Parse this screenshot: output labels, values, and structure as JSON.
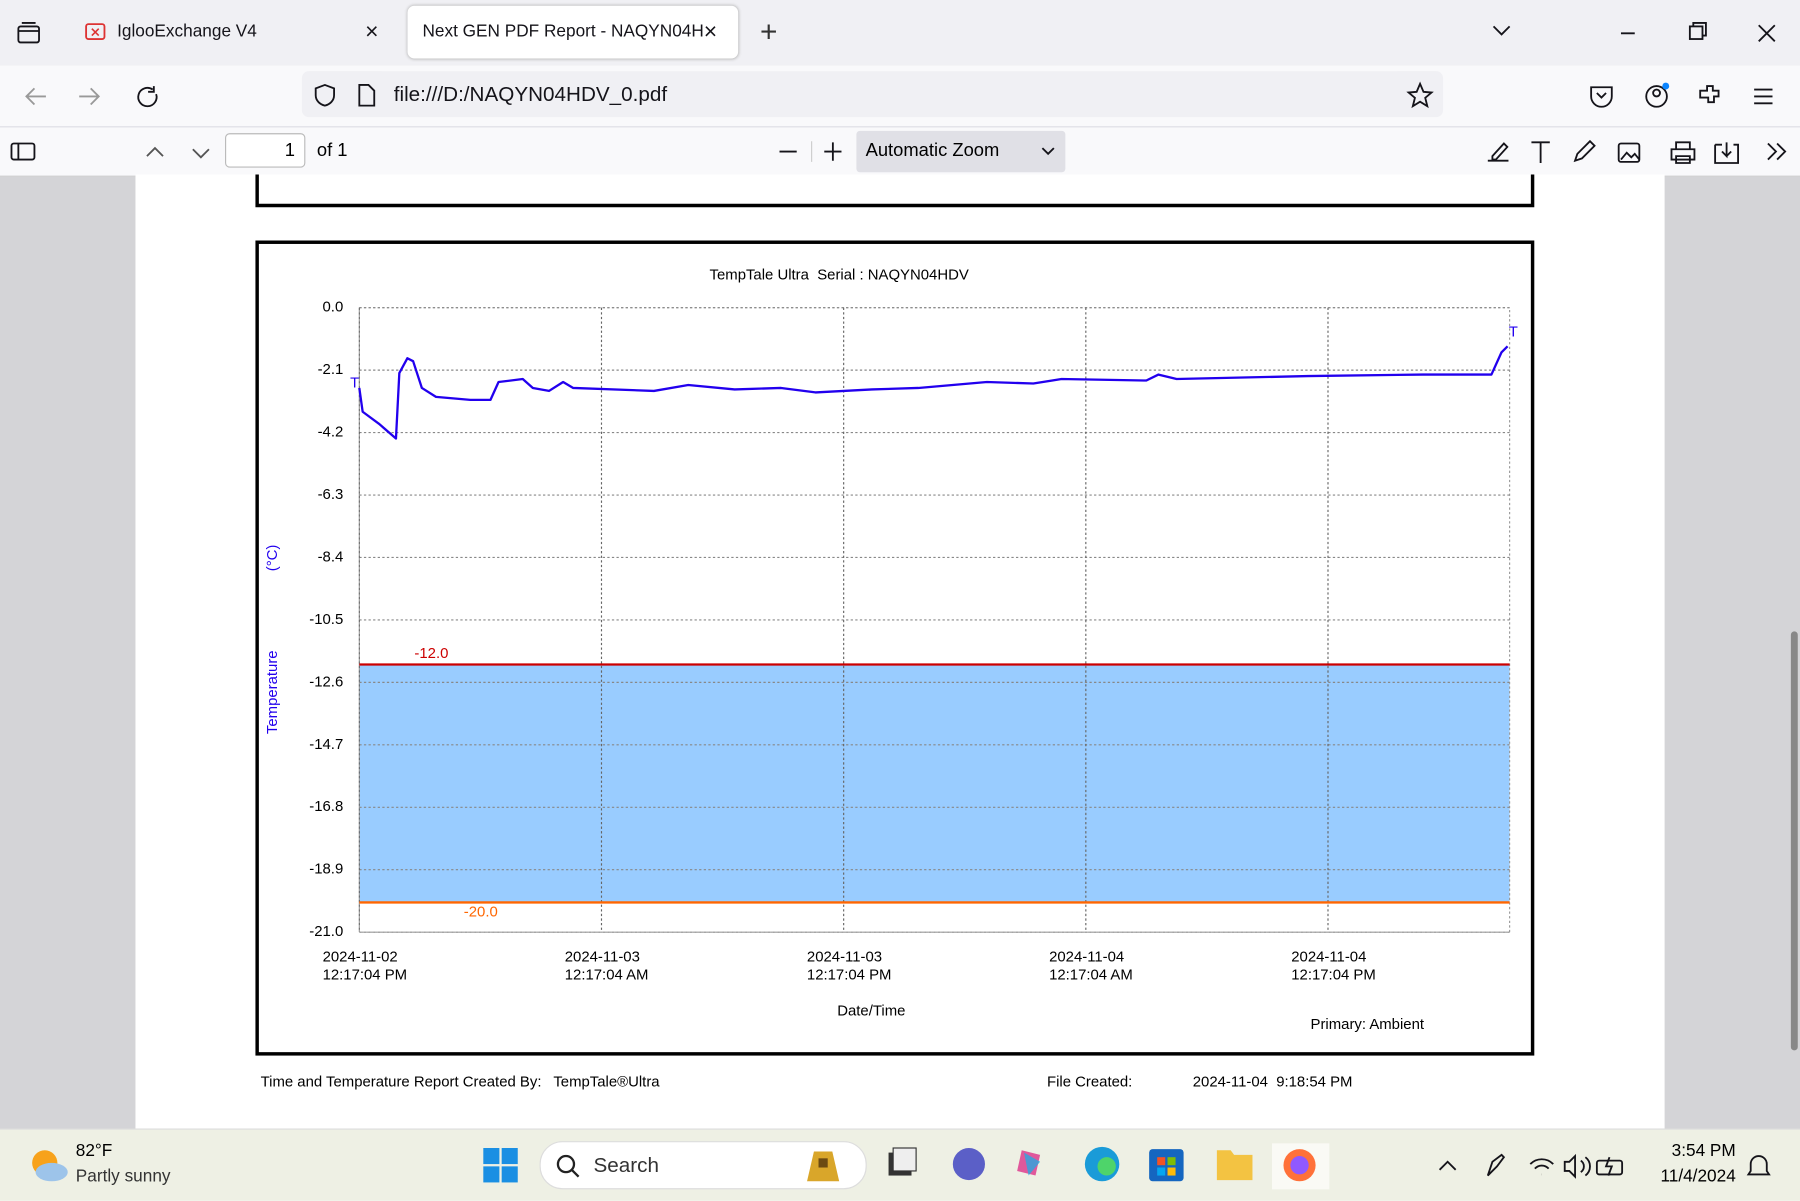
{
  "browser": {
    "tabs": [
      "IglooExchange V4",
      "Next GEN PDF Report - NAQYN04H"
    ],
    "url": "file:///D:/NAQYN04HDV_0.pdf"
  },
  "pdf_toolbar": {
    "page": "1",
    "page_count": "of 1",
    "zoom": "Automatic Zoom"
  },
  "chart_data": {
    "type": "line",
    "title": "TempTale Ultra  Serial : NAQYN04HDV",
    "x_label": "Date/Time",
    "y_label": "Temperature",
    "y_unit": "(°C)",
    "xlim": [
      "2024-11-02T12:17:04",
      "2024-11-04T21:17:04"
    ],
    "xticks": [
      {
        "value": "2024-11-02T12:17:04",
        "label": [
          "2024-11-02",
          "12:17:04 PM"
        ]
      },
      {
        "value": "2024-11-03T00:17:04",
        "label": [
          "2024-11-03",
          "12:17:04 AM"
        ]
      },
      {
        "value": "2024-11-03T12:17:04",
        "label": [
          "2024-11-03",
          "12:17:04 PM"
        ]
      },
      {
        "value": "2024-11-04T00:17:04",
        "label": [
          "2024-11-04",
          "12:17:04 AM"
        ]
      },
      {
        "value": "2024-11-04T12:17:04",
        "label": [
          "2024-11-04",
          "12:17:04 PM"
        ]
      }
    ],
    "ylim": [
      -21,
      0
    ],
    "yticks": [
      {
        "value": 0,
        "label": "0.0"
      },
      -2.1,
      -4.2,
      -6.3,
      -8.4,
      -10.5,
      -12.6,
      -14.7,
      -16.8,
      -18.9,
      {
        "value": -21,
        "label": "-21.0"
      }
    ],
    "grid": true,
    "thresholds": [
      {
        "value": -12,
        "label": "-12.0",
        "color": "#cc0000"
      },
      {
        "value": -20,
        "label": "-20.0",
        "color": "#ff6600"
      }
    ],
    "band_color": "#99ccff",
    "markers": {
      "start": "T",
      "end": "T"
    },
    "series": [
      {
        "name": "Primary: Ambient",
        "color": "#2200ee",
        "x": [
          "2024-11-02T12:17",
          "2024-11-02T12:27",
          "2024-11-02T13:15",
          "2024-11-02T14:06",
          "2024-11-02T14:16",
          "2024-11-02T14:40",
          "2024-11-02T14:57",
          "2024-11-02T15:23",
          "2024-11-02T16:05",
          "2024-11-02T17:47",
          "2024-11-02T18:47",
          "2024-11-02T19:11",
          "2024-11-02T20:23",
          "2024-11-02T20:53",
          "2024-11-02T21:41",
          "2024-11-02T22:23",
          "2024-11-02T22:53",
          "2024-11-03T02:53",
          "2024-11-03T04:35",
          "2024-11-03T06:53",
          "2024-11-03T09:11",
          "2024-11-03T10:53",
          "2024-11-03T13:41",
          "2024-11-03T15:59",
          "2024-11-03T17:41",
          "2024-11-03T19:23",
          "2024-11-03T21:41",
          "2024-11-03T23:05",
          "2024-11-04T03:17",
          "2024-11-04T03:53",
          "2024-11-04T04:47",
          "2024-11-04T11:17",
          "2024-11-04T16:59",
          "2024-11-04T20:23",
          "2024-11-04T20:53",
          "2024-11-04T21:11"
        ],
        "values": [
          -2.7,
          -3.5,
          -3.9,
          -4.4,
          -2.2,
          -1.7,
          -1.8,
          -2.7,
          -3.0,
          -3.1,
          -3.1,
          -2.5,
          -2.4,
          -2.7,
          -2.8,
          -2.5,
          -2.7,
          -2.8,
          -2.6,
          -2.75,
          -2.7,
          -2.85,
          -2.75,
          -2.7,
          -2.6,
          -2.5,
          -2.55,
          -2.4,
          -2.45,
          -2.25,
          -2.4,
          -2.3,
          -2.25,
          -2.25,
          -1.5,
          -1.3
        ]
      }
    ]
  },
  "report_footer": {
    "created_by_label": "Time and Temperature Report Created By:",
    "created_by": "TempTale®Ultra",
    "file_created_label": "File Created:",
    "file_created": "2024-11-04  9:18:54 PM"
  },
  "taskbar": {
    "weather_temp": "82°F",
    "weather_desc": "Partly sunny",
    "search": "Search",
    "time": "3:54 PM",
    "date": "11/4/2024"
  }
}
